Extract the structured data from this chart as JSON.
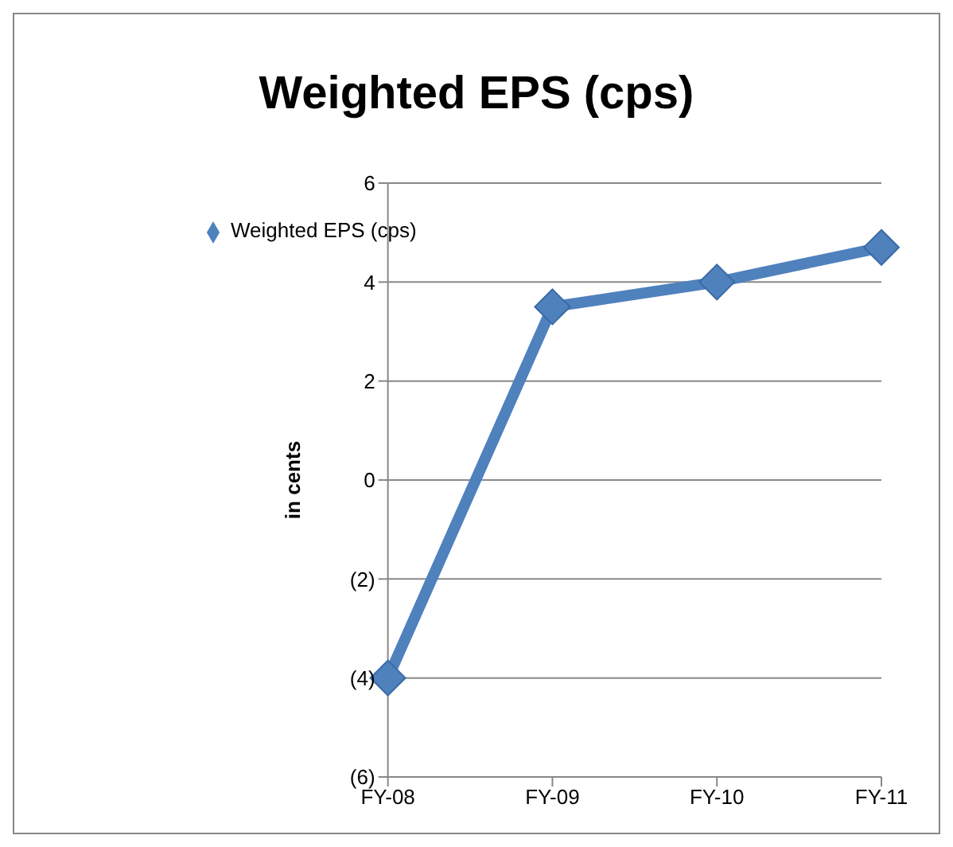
{
  "chart_data": {
    "type": "line",
    "title": "Weighted EPS (cps)",
    "ylabel": "in  cents",
    "categories": [
      "FY-08",
      "FY-09",
      "FY-10",
      "FY-11"
    ],
    "series": [
      {
        "name": "Weighted EPS (cps)",
        "color": "#4f81bd",
        "values": [
          -4,
          3.5,
          4,
          4.7
        ]
      }
    ],
    "ylim": [
      -6,
      6
    ],
    "yticks": [
      {
        "value": -6,
        "label": "(6)"
      },
      {
        "value": -4,
        "label": "(4)"
      },
      {
        "value": -2,
        "label": "(2)"
      },
      0,
      2,
      4,
      6
    ],
    "grid": "y",
    "legend": "top left",
    "marker": "diamond",
    "line_style": "solid"
  }
}
